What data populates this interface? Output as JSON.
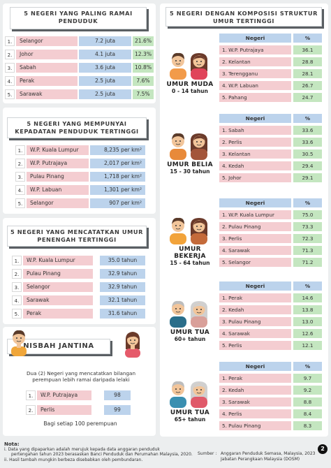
{
  "sections": {
    "top_populous": {
      "title": "5 NEGERI YANG PALING RAMAI PENDUDUK",
      "rows": [
        {
          "rank": "1.",
          "state": "Selangor",
          "population": "7.2 juta",
          "percent": "21.6%"
        },
        {
          "rank": "2.",
          "state": "Johor",
          "population": "4.1 juta",
          "percent": "12.3%"
        },
        {
          "rank": "3.",
          "state": "Sabah",
          "population": "3.6 juta",
          "percent": "10.8%"
        },
        {
          "rank": "4.",
          "state": "Perak",
          "population": "2.5 juta",
          "percent": "7.6%"
        },
        {
          "rank": "5.",
          "state": "Sarawak",
          "population": "2.5 juta",
          "percent": "7.5%"
        }
      ]
    },
    "top_density": {
      "title": "5 NEGERI YANG MEMPUNYAI KEPADATAN PENDUDUK TERTINGGI",
      "rows": [
        {
          "rank": "1.",
          "state": "W.P. Kuala Lumpur",
          "value": "8,235 per km²"
        },
        {
          "rank": "2.",
          "state": "W.P. Putrajaya",
          "value": "2,017 per km²"
        },
        {
          "rank": "3.",
          "state": "Pulau Pinang",
          "value": "1,718 per km²"
        },
        {
          "rank": "4.",
          "state": "W.P. Labuan",
          "value": "1,301 per km²"
        },
        {
          "rank": "5.",
          "state": "Selangor",
          "value": "907 per km²"
        }
      ]
    },
    "top_median_age": {
      "title": "5 NEGERI YANG MENCATATKAN UMUR PENENGAH TERTINGGI",
      "rows": [
        {
          "rank": "1.",
          "state": "W.P. Kuala Lumpur",
          "value": "35.0 tahun"
        },
        {
          "rank": "2.",
          "state": "Pulau Pinang",
          "value": "32.9 tahun"
        },
        {
          "rank": "3.",
          "state": "Selangor",
          "value": "32.9 tahun"
        },
        {
          "rank": "4.",
          "state": "Sarawak",
          "value": "32.1 tahun"
        },
        {
          "rank": "5.",
          "state": "Perak",
          "value": "31.6 tahun"
        }
      ]
    },
    "sex_ratio": {
      "title": "NISBAH JANTINA",
      "description": "Dua (2) Negeri yang mencatatkan bilangan perempuan lebih ramai daripada lelaki",
      "rows": [
        {
          "rank": "1.",
          "state": "W.P. Putrajaya",
          "value": "98"
        },
        {
          "rank": "2.",
          "state": "Perlis",
          "value": "99"
        }
      ],
      "footer": "Bagi setiap 100 perempuan"
    },
    "age_structure": {
      "title": "5 NEGERI DENGAN KOMPOSISI STRUKTUR UMUR TERTINGGI",
      "col_state": "Negeri",
      "col_pct": "%",
      "groups": [
        {
          "label": "UMUR MUDA",
          "range": "0 - 14 tahun",
          "rows": [
            {
              "state": "1. W.P. Putrajaya",
              "value": "36.1"
            },
            {
              "state": "2. Kelantan",
              "value": "28.8"
            },
            {
              "state": "3. Terengganu",
              "value": "28.1"
            },
            {
              "state": "4. W.P. Labuan",
              "value": "26.7"
            },
            {
              "state": "5. Pahang",
              "value": "24.7"
            }
          ]
        },
        {
          "label": "UMUR BELIA",
          "range": "15 - 30 tahun",
          "rows": [
            {
              "state": "1. Sabah",
              "value": "33.6"
            },
            {
              "state": "2. Perlis",
              "value": "33.6"
            },
            {
              "state": "3. Kelantan",
              "value": "30.5"
            },
            {
              "state": "4. Kedah",
              "value": "29.4"
            },
            {
              "state": "5. Johor",
              "value": "29.1"
            }
          ]
        },
        {
          "label": "UMUR BEKERJA",
          "range": "15 - 64 tahun",
          "rows": [
            {
              "state": "1. W.P. Kuala Lumpur",
              "value": "75.0"
            },
            {
              "state": "2. Pulau Pinang",
              "value": "73.3"
            },
            {
              "state": "3. Perlis",
              "value": "72.3"
            },
            {
              "state": "4. Sarawak",
              "value": "71.3"
            },
            {
              "state": "5. Selangor",
              "value": "71.2"
            }
          ]
        },
        {
          "label": "UMUR TUA",
          "range": "60+ tahun",
          "rows": [
            {
              "state": "1. Perak",
              "value": "14.6"
            },
            {
              "state": "2. Kedah",
              "value": "13.8"
            },
            {
              "state": "3. Pulau Pinang",
              "value": "13.0"
            },
            {
              "state": "4. Sarawak",
              "value": "12.6"
            },
            {
              "state": "5. Perlis",
              "value": "12.1"
            }
          ]
        },
        {
          "label": "UMUR TUA",
          "range": "65+ tahun",
          "rows": [
            {
              "state": "1. Perak",
              "value": "9.7"
            },
            {
              "state": "2. Kedah",
              "value": "9.2"
            },
            {
              "state": "3. Sarawak",
              "value": "8.8"
            },
            {
              "state": "4. Perlis",
              "value": "8.4"
            },
            {
              "state": "5. Pulau Pinang",
              "value": "8.3"
            }
          ]
        }
      ]
    }
  },
  "notes": {
    "heading": "Nota:",
    "line1": "i.  Data yang dipaparkan adalah merujuk kepada data anggaran penduduk",
    "line1b": "pertengahan tahun 2023 berasaskan Banci Penduduk dan Perumahan Malaysia, 2020.",
    "line2": "ii. Hasil tambah mungkin berbeza disebabkan oleh pembundaran.",
    "source_label": "Sumber :",
    "source_line1": "Anggaran Penduduk Semasa, Malaysia, 2023",
    "source_line2": "Jabatan Perangkaan Malaysia (DOSM)",
    "page": "2"
  },
  "colors": {
    "pink": "#f4cdd1",
    "blue": "#bcd3ec",
    "green": "#c4e6c0",
    "background": "#eceeef"
  },
  "chart_data": [
    {
      "type": "table",
      "title": "5 NEGERI YANG PALING RAMAI PENDUDUK",
      "categories": [
        "Selangor",
        "Johor",
        "Sabah",
        "Perak",
        "Sarawak"
      ],
      "series": [
        {
          "name": "juta",
          "values": [
            7.2,
            4.1,
            3.6,
            2.5,
            2.5
          ]
        },
        {
          "name": "%",
          "values": [
            21.6,
            12.3,
            10.8,
            7.6,
            7.5
          ]
        }
      ]
    },
    {
      "type": "table",
      "title": "5 NEGERI YANG MEMPUNYAI KEPADATAN PENDUDUK TERTINGGI",
      "categories": [
        "W.P. Kuala Lumpur",
        "W.P. Putrajaya",
        "Pulau Pinang",
        "W.P. Labuan",
        "Selangor"
      ],
      "values": [
        8235,
        2017,
        1718,
        1301,
        907
      ]
    },
    {
      "type": "table",
      "title": "5 NEGERI YANG MENCATATKAN UMUR PENENGAH TERTINGGI",
      "categories": [
        "W.P. Kuala Lumpur",
        "Pulau Pinang",
        "Selangor",
        "Sarawak",
        "Perak"
      ],
      "values": [
        35.0,
        32.9,
        32.9,
        32.1,
        31.6
      ]
    },
    {
      "type": "table",
      "title": "NISBAH JANTINA",
      "categories": [
        "W.P. Putrajaya",
        "Perlis"
      ],
      "values": [
        98,
        99
      ]
    },
    {
      "type": "table",
      "title": "5 NEGERI DENGAN KOMPOSISI STRUKTUR UMUR TERTINGGI",
      "series": [
        {
          "name": "UMUR MUDA 0 - 14 tahun",
          "categories": [
            "W.P. Putrajaya",
            "Kelantan",
            "Terengganu",
            "W.P. Labuan",
            "Pahang"
          ],
          "values": [
            36.1,
            28.8,
            28.1,
            26.7,
            24.7
          ]
        },
        {
          "name": "UMUR BELIA 15 - 30 tahun",
          "categories": [
            "Sabah",
            "Perlis",
            "Kelantan",
            "Kedah",
            "Johor"
          ],
          "values": [
            33.6,
            33.6,
            30.5,
            29.4,
            29.1
          ]
        },
        {
          "name": "UMUR BEKERJA 15 - 64 tahun",
          "categories": [
            "W.P. Kuala Lumpur",
            "Pulau Pinang",
            "Perlis",
            "Sarawak",
            "Selangor"
          ],
          "values": [
            75.0,
            73.3,
            72.3,
            71.3,
            71.2
          ]
        },
        {
          "name": "UMUR TUA 60+ tahun",
          "categories": [
            "Perak",
            "Kedah",
            "Pulau Pinang",
            "Sarawak",
            "Perlis"
          ],
          "values": [
            14.6,
            13.8,
            13.0,
            12.6,
            12.1
          ]
        },
        {
          "name": "UMUR TUA 65+ tahun",
          "categories": [
            "Perak",
            "Kedah",
            "Sarawak",
            "Perlis",
            "Pulau Pinang"
          ],
          "values": [
            9.7,
            9.2,
            8.8,
            8.4,
            8.3
          ]
        }
      ]
    }
  ]
}
